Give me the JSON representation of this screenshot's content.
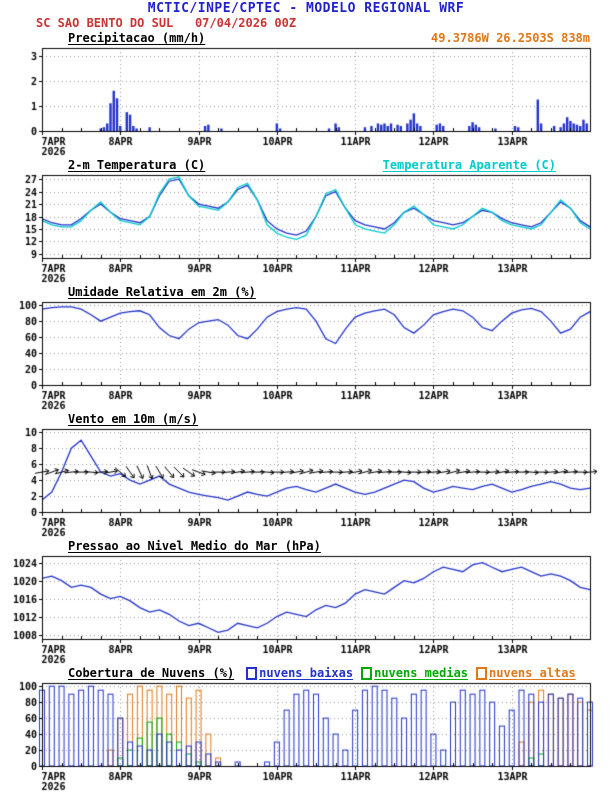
{
  "header": {
    "title": "MCTIC/INPE/CPTEC - MODELO REGIONAL WRF",
    "station_line": "SC SAO BENTO DO SUL   07/04/2026 00Z",
    "coords": "49.3786W 26.2503S 838m",
    "colors": {
      "title": "#2222cc",
      "station": "#cc3333",
      "coords": "#e07818"
    }
  },
  "x_axis": {
    "total_hours": 168,
    "step_hours": 3,
    "day_labels": [
      "7APR",
      "8APR",
      "9APR",
      "10APR",
      "11APR",
      "12APR",
      "13APR"
    ],
    "year": "2026"
  },
  "chart_data": [
    {
      "id": "precipitation",
      "type": "bar",
      "title": "Precipitacao (mm/h)",
      "ylim": [
        0,
        3.3
      ],
      "yticks": [
        0,
        1,
        2,
        3
      ],
      "bar_color": "#2233cc",
      "points": [
        [
          18,
          0.1
        ],
        [
          19,
          0.15
        ],
        [
          20,
          0.3
        ],
        [
          21,
          1.1
        ],
        [
          22,
          1.6
        ],
        [
          23,
          1.3
        ],
        [
          24,
          0.2
        ],
        [
          26,
          0.75
        ],
        [
          27,
          0.65
        ],
        [
          28,
          0.2
        ],
        [
          29,
          0.1
        ],
        [
          33,
          0.15
        ],
        [
          50,
          0.2
        ],
        [
          51,
          0.25
        ],
        [
          55,
          0.1
        ],
        [
          72,
          0.3
        ],
        [
          73,
          0.1
        ],
        [
          88,
          0.1
        ],
        [
          90,
          0.3
        ],
        [
          91,
          0.15
        ],
        [
          99,
          0.15
        ],
        [
          101,
          0.2
        ],
        [
          103,
          0.3
        ],
        [
          104,
          0.25
        ],
        [
          105,
          0.3
        ],
        [
          106,
          0.2
        ],
        [
          107,
          0.3
        ],
        [
          109,
          0.25
        ],
        [
          110,
          0.2
        ],
        [
          112,
          0.3
        ],
        [
          113,
          0.45
        ],
        [
          114,
          0.7
        ],
        [
          115,
          0.3
        ],
        [
          116,
          0.2
        ],
        [
          121,
          0.25
        ],
        [
          122,
          0.3
        ],
        [
          123,
          0.2
        ],
        [
          131,
          0.2
        ],
        [
          132,
          0.35
        ],
        [
          133,
          0.25
        ],
        [
          134,
          0.15
        ],
        [
          139,
          0.1
        ],
        [
          145,
          0.2
        ],
        [
          146,
          0.15
        ],
        [
          152,
          1.25
        ],
        [
          153,
          0.3
        ],
        [
          157,
          0.2
        ],
        [
          159,
          0.15
        ],
        [
          160,
          0.3
        ],
        [
          161,
          0.55
        ],
        [
          162,
          0.4
        ],
        [
          163,
          0.3
        ],
        [
          164,
          0.25
        ],
        [
          165,
          0.2
        ],
        [
          166,
          0.45
        ],
        [
          167,
          0.3
        ]
      ]
    },
    {
      "id": "temperature",
      "type": "line",
      "title": "2-m Temperatura (C)",
      "subtitle": "Temperatura Aparente (C)",
      "ylim": [
        8,
        28
      ],
      "yticks": [
        9,
        12,
        15,
        18,
        21,
        24,
        27
      ],
      "series": [
        {
          "name": "2-m Temperatura (C)",
          "color": "#2233cc",
          "values": [
            17.5,
            16.5,
            16,
            16,
            17.5,
            19.5,
            21,
            19,
            17.5,
            17,
            16.5,
            18,
            23,
            26.5,
            27,
            23,
            21,
            20.5,
            20,
            21.5,
            24.5,
            25.5,
            22,
            17,
            15,
            14,
            13.5,
            14.5,
            18,
            23,
            24,
            20,
            17,
            16,
            15.5,
            15,
            16.5,
            19,
            20,
            18.5,
            17,
            16.5,
            16,
            16.5,
            18,
            19.5,
            19,
            17.5,
            16.5,
            16,
            15.5,
            16.5,
            19,
            21.5,
            20,
            17,
            15.5
          ]
        },
        {
          "name": "Temperatura Aparente (C)",
          "color": "#00cccc",
          "values": [
            17,
            16,
            15.5,
            15.5,
            17,
            19.5,
            21.5,
            19,
            17,
            16.5,
            16,
            18,
            23.5,
            27,
            27.5,
            23,
            20.5,
            20,
            19.5,
            21.5,
            25,
            26,
            22,
            16,
            14,
            13,
            12.5,
            13.5,
            18,
            23.5,
            24.5,
            20,
            16,
            15,
            14.5,
            14,
            16,
            19,
            20.5,
            18.5,
            16,
            15.5,
            15,
            16,
            18,
            20,
            19,
            17,
            16,
            15.5,
            15,
            16,
            19,
            22,
            20,
            16.5,
            15
          ]
        }
      ]
    },
    {
      "id": "humidity",
      "type": "line",
      "title": "Umidade Relativa em 2m (%)",
      "ylim": [
        0,
        104
      ],
      "yticks": [
        0,
        20,
        40,
        60,
        80,
        100
      ],
      "series": [
        {
          "name": "Umidade Relativa em 2m",
          "color": "#2233cc",
          "values": [
            95,
            97,
            98,
            98,
            95,
            88,
            80,
            85,
            90,
            92,
            93,
            88,
            72,
            62,
            58,
            70,
            78,
            80,
            82,
            75,
            62,
            58,
            70,
            85,
            92,
            95,
            97,
            95,
            80,
            58,
            52,
            70,
            85,
            90,
            93,
            95,
            88,
            72,
            65,
            75,
            88,
            92,
            95,
            93,
            85,
            72,
            68,
            80,
            90,
            94,
            96,
            92,
            80,
            65,
            70,
            85,
            92
          ]
        }
      ]
    },
    {
      "id": "wind",
      "type": "line",
      "title": "Vento em 10m (m/s)",
      "ylim": [
        0,
        10.4
      ],
      "yticks": [
        0,
        2,
        4,
        6,
        8,
        10
      ],
      "series": [
        {
          "name": "Vento em 10m",
          "color": "#2233cc",
          "values": [
            1.5,
            2.5,
            5,
            8,
            9,
            7,
            5,
            4.5,
            4.8,
            4,
            3.5,
            4,
            4.5,
            3.5,
            3,
            2.5,
            2.2,
            2,
            1.8,
            1.5,
            2,
            2.5,
            2.2,
            2,
            2.5,
            3,
            3.2,
            2.8,
            2.5,
            3,
            3.5,
            3,
            2.5,
            2.2,
            2.5,
            3,
            3.5,
            4,
            3.8,
            3,
            2.5,
            2.8,
            3.2,
            3,
            2.8,
            3.2,
            3.5,
            3,
            2.5,
            2.8,
            3.2,
            3.5,
            3.8,
            3.5,
            3,
            2.8,
            3
          ]
        }
      ],
      "barbs": {
        "color": "#000000",
        "y": 5,
        "angles": [
          10,
          20,
          15,
          5,
          0,
          -5,
          5,
          10,
          -40,
          -55,
          -65,
          -70,
          -60,
          -50,
          -45,
          -35,
          -20,
          -10,
          0,
          5,
          10,
          5,
          0,
          -5,
          0,
          5,
          10,
          15,
          10,
          5,
          0,
          5,
          10,
          15,
          10,
          5,
          0,
          -5,
          0,
          5,
          5,
          10,
          15,
          10,
          5,
          0,
          5,
          10,
          5,
          0,
          -5,
          0,
          5,
          10,
          5,
          0,
          5
        ]
      }
    },
    {
      "id": "pressure",
      "type": "line",
      "title": "Pressao ao Nivel Medio do Mar (hPa)",
      "ylim": [
        1007,
        1025.5
      ],
      "yticks": [
        1008,
        1012,
        1016,
        1020,
        1024
      ],
      "series": [
        {
          "name": "Pressao ao Nivel Medio do Mar",
          "color": "#2233cc",
          "values": [
            1020.5,
            1021,
            1020,
            1018.5,
            1019,
            1018.5,
            1017,
            1016,
            1016.5,
            1015.5,
            1014,
            1013,
            1013.5,
            1012.5,
            1011,
            1010,
            1010.5,
            1009.5,
            1008.5,
            1009,
            1010.5,
            1010,
            1009.5,
            1010.5,
            1012,
            1013,
            1012.5,
            1012,
            1013.5,
            1014.5,
            1014,
            1015,
            1017,
            1018,
            1017.5,
            1017,
            1018.5,
            1020,
            1019.5,
            1020.5,
            1022,
            1023,
            1022.5,
            1022,
            1023.5,
            1024,
            1023,
            1022,
            1022.5,
            1023,
            1022,
            1021,
            1021.5,
            1021,
            1020,
            1018.5,
            1018
          ]
        }
      ]
    },
    {
      "id": "cloud-cover",
      "type": "bar",
      "title": "Cobertura de Nuvens (%)",
      "ylim": [
        0,
        104
      ],
      "yticks": [
        0,
        20,
        40,
        60,
        80,
        100
      ],
      "legend": [
        {
          "label": "nuvens baixas",
          "color": "#2233cc"
        },
        {
          "label": "nuvens medias",
          "color": "#00aa00"
        },
        {
          "label": "nuvens altas",
          "color": "#e07818"
        }
      ],
      "bar_series": [
        {
          "name": "nuvens altas",
          "color": "#e07818",
          "values": [
            0,
            0,
            0,
            0,
            0,
            0,
            0,
            20,
            60,
            90,
            100,
            95,
            100,
            90,
            100,
            85,
            95,
            40,
            10,
            0,
            0,
            0,
            0,
            0,
            0,
            0,
            0,
            0,
            0,
            0,
            0,
            0,
            0,
            0,
            0,
            0,
            0,
            0,
            0,
            0,
            0,
            0,
            0,
            0,
            0,
            0,
            0,
            0,
            0,
            30,
            80,
            95,
            90,
            85,
            90,
            80,
            70
          ]
        },
        {
          "name": "nuvens medias",
          "color": "#00aa00",
          "values": [
            0,
            0,
            0,
            0,
            0,
            0,
            0,
            0,
            10,
            20,
            35,
            55,
            60,
            40,
            30,
            15,
            5,
            0,
            0,
            0,
            0,
            0,
            0,
            0,
            0,
            0,
            0,
            0,
            0,
            0,
            0,
            0,
            0,
            0,
            0,
            0,
            0,
            0,
            0,
            0,
            0,
            0,
            0,
            0,
            0,
            0,
            0,
            0,
            0,
            0,
            10,
            15,
            0,
            0,
            0,
            0,
            0
          ]
        },
        {
          "name": "nuvens baixas",
          "color": "#2233cc",
          "values": [
            95,
            100,
            100,
            90,
            95,
            100,
            95,
            90,
            60,
            30,
            25,
            20,
            40,
            30,
            20,
            25,
            30,
            15,
            5,
            0,
            5,
            0,
            0,
            5,
            30,
            70,
            90,
            95,
            90,
            60,
            40,
            20,
            70,
            95,
            100,
            95,
            85,
            60,
            90,
            95,
            40,
            20,
            80,
            95,
            90,
            95,
            80,
            50,
            70,
            95,
            90,
            80,
            90,
            85,
            90,
            85,
            80
          ]
        }
      ]
    }
  ]
}
